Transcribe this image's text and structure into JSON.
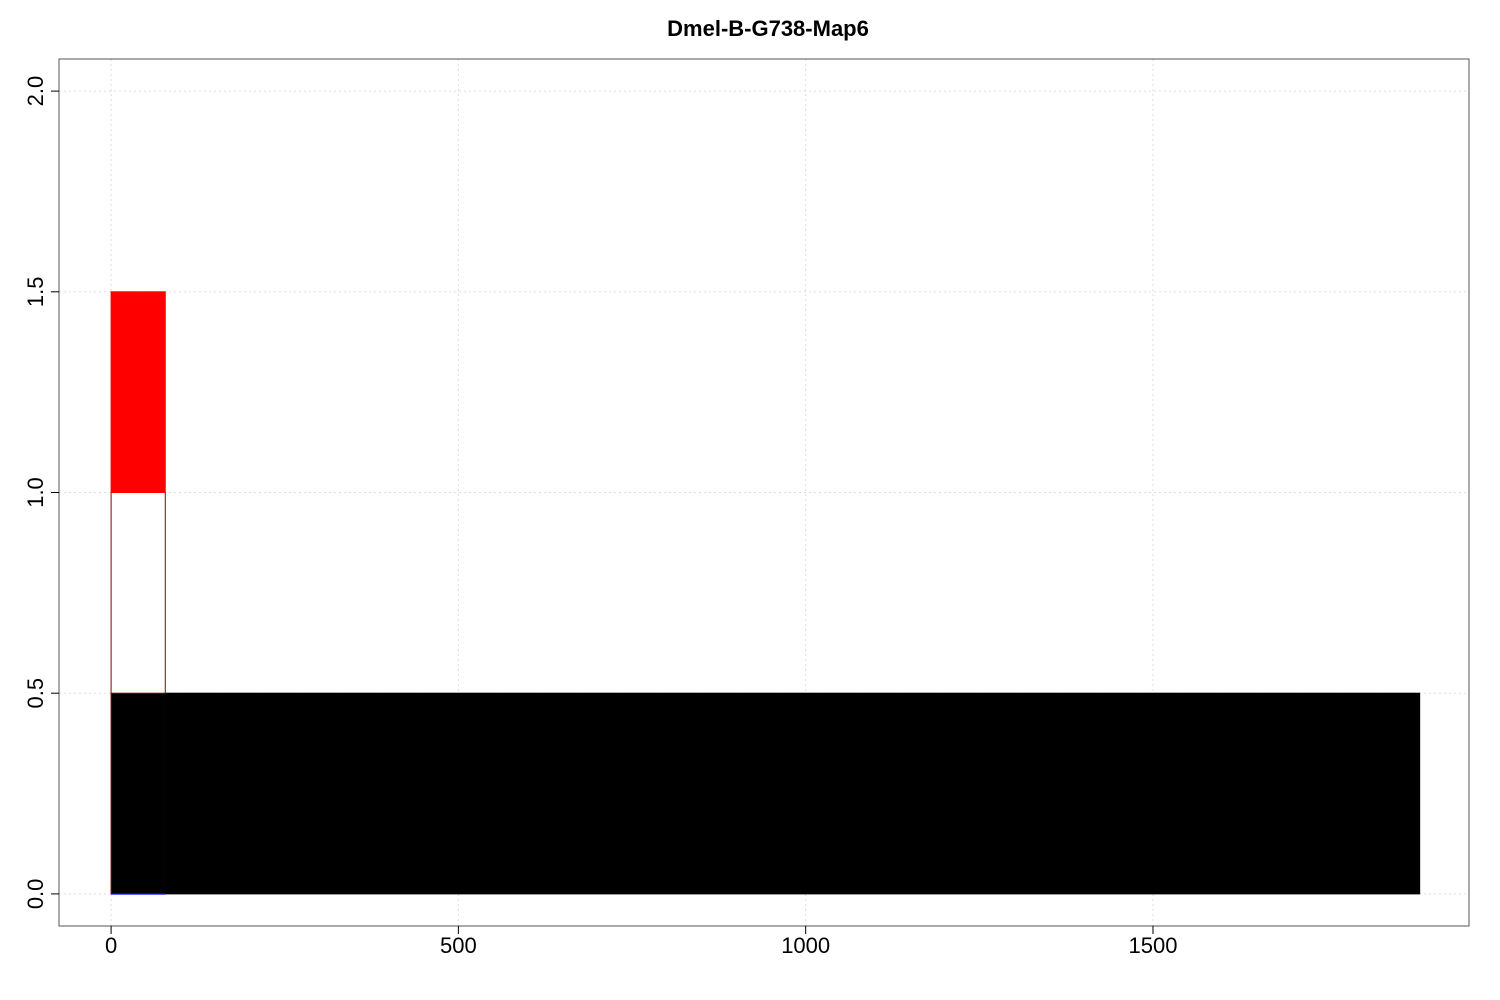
{
  "chart_data": {
    "type": "bar",
    "title": "Dmel-B-G738-Map6",
    "xlabel": "",
    "ylabel": "",
    "xlim": [
      -75,
      1955
    ],
    "ylim": [
      -0.08,
      2.08
    ],
    "xticks": [
      0,
      500,
      1000,
      1500
    ],
    "xtick_labels": [
      "0",
      "500",
      "1000",
      "1500"
    ],
    "yticks": [
      0.0,
      0.5,
      1.0,
      1.5,
      2.0
    ],
    "ytick_labels": [
      "0.0",
      "0.5",
      "1.0",
      "1.5",
      "2.0"
    ],
    "grid": true,
    "segments": [
      {
        "x0": 0,
        "x1": 78,
        "y0": 0,
        "y1": 0.5,
        "fill": "#000000",
        "stroke": "#8b0000"
      },
      {
        "x0": 78,
        "x1": 1884,
        "y0": 0,
        "y1": 0.5,
        "fill": "#000000",
        "stroke": "#000000"
      },
      {
        "x0": 0,
        "x1": 78,
        "y0": 0.5,
        "y1": 1.0,
        "fill": "#ffffff",
        "stroke": "#8b0000"
      },
      {
        "x0": 0,
        "x1": 78,
        "y0": 1.0,
        "y1": 1.5,
        "fill": "#ff0000",
        "stroke": "#ff0000"
      }
    ],
    "baseline_line": {
      "x0": 0,
      "x1": 78,
      "y": 0,
      "color": "#0000ff"
    }
  }
}
